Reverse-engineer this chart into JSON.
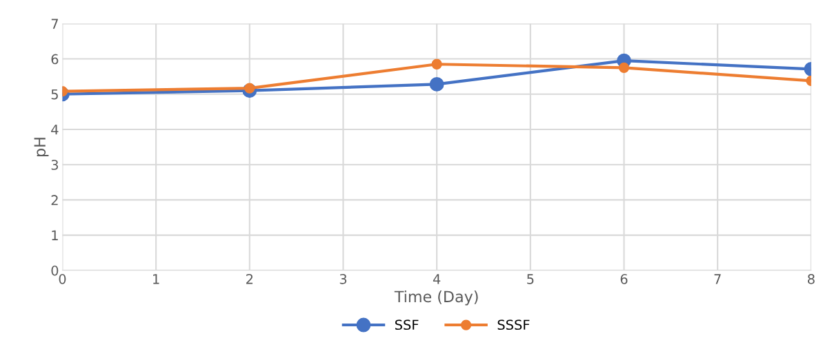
{
  "chart_data": {
    "type": "line",
    "xlabel": "Time (Day)",
    "ylabel": "pH",
    "x": [
      0,
      2,
      4,
      6,
      8
    ],
    "series": [
      {
        "name": "SSF",
        "color": "#4472c4",
        "values": [
          5.0,
          5.1,
          5.28,
          5.95,
          5.71
        ]
      },
      {
        "name": "SSSF",
        "color": "#ed7d31",
        "values": [
          5.08,
          5.17,
          5.85,
          5.75,
          5.38
        ]
      }
    ],
    "xlim": [
      0,
      8
    ],
    "xticks": [
      0,
      1,
      2,
      3,
      4,
      5,
      6,
      7,
      8
    ],
    "ylim": [
      0,
      7
    ],
    "yticks": [
      0,
      1,
      2,
      3,
      4,
      5,
      6,
      7
    ],
    "grid": true,
    "legend": "bottom",
    "marker": "circle",
    "line_style": "solid"
  }
}
